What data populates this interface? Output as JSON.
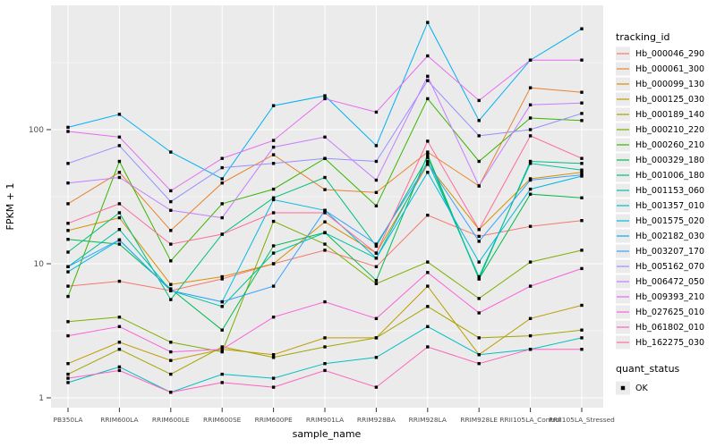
{
  "figure": {
    "x_axis_label": "sample_name",
    "y_axis_label": "FPKM + 1",
    "y_tick_labels": [
      "100",
      "10",
      "1"
    ],
    "legend": {
      "tracking_title": "tracking_id",
      "quant_title": "quant_status",
      "quant_ok_label": "OK"
    },
    "colors": {
      "panel_bg": "#EBEBEB",
      "grid": "#FFFFFF",
      "tick_text": "#4D4D4D",
      "axis_title_text": "#000000",
      "point": "#000000",
      "legend_key_bg": "#EBEBEB"
    }
  },
  "chart_data": {
    "type": "line",
    "title": "",
    "xlabel": "sample_name",
    "ylabel": "FPKM + 1",
    "yscale": "log10",
    "ylim": [
      1,
      820
    ],
    "y_major_ticks": [
      1,
      10,
      100
    ],
    "y_minor_ticks": [
      3.162,
      31.62,
      316.2
    ],
    "grid": true,
    "legend_position": "right",
    "point_shape": "filled-black-square",
    "categories": [
      "PB350LA",
      "RRIM600LA",
      "RRIM600LE",
      "RRIM600SE",
      "RRIM600PE",
      "RRIM901LA",
      "RRIM928BA",
      "RRIM928LA",
      "RRIM928LE",
      "RRII105LA_Control",
      "RRII105LA_Stressed"
    ],
    "series": [
      {
        "name": "Hb_000046_290",
        "color": "#F8766D",
        "values": [
          6.8,
          7.4,
          6.3,
          7.7,
          10,
          12.6,
          9.5,
          23,
          16,
          19,
          21
        ]
      },
      {
        "name": "Hb_000061_300",
        "color": "#EA8331",
        "values": [
          28,
          48,
          17.7,
          40,
          65,
          35.7,
          34,
          68,
          38,
          205,
          190
        ]
      },
      {
        "name": "Hb_000099_130",
        "color": "#D89000",
        "values": [
          17.7,
          22,
          7,
          8,
          10,
          20.5,
          12,
          55,
          18,
          43,
          48
        ]
      },
      {
        "name": "Hb_000125_030",
        "color": "#C09B00",
        "values": [
          1.8,
          2.6,
          1.9,
          2.3,
          2.1,
          2.8,
          2.8,
          6.8,
          2.1,
          3.9,
          4.9
        ]
      },
      {
        "name": "Hb_000189_140",
        "color": "#A3A500",
        "values": [
          1.5,
          2.3,
          1.5,
          2.4,
          2.0,
          2.4,
          2.8,
          4.8,
          2.8,
          2.9,
          3.2
        ]
      },
      {
        "name": "Hb_000210_220",
        "color": "#7CAE00",
        "values": [
          3.7,
          4.0,
          2.6,
          2.2,
          20.7,
          14,
          7.1,
          10.3,
          5.5,
          10.3,
          12.6
        ]
      },
      {
        "name": "Hb_000260_210",
        "color": "#39B600",
        "values": [
          5.7,
          58,
          10.5,
          28,
          36,
          61,
          27,
          170,
          58,
          122,
          117
        ]
      },
      {
        "name": "Hb_000329_180",
        "color": "#00BB4E",
        "values": [
          15.2,
          14,
          6.5,
          3.2,
          13.6,
          17.1,
          7.5,
          65,
          7.7,
          33,
          31
        ]
      },
      {
        "name": "Hb_001006_180",
        "color": "#00BF7D",
        "values": [
          12.2,
          24,
          5.4,
          16.6,
          31,
          44,
          13.5,
          62,
          7.7,
          58,
          56
        ]
      },
      {
        "name": "Hb_001153_060",
        "color": "#00C1A3",
        "values": [
          9.5,
          18,
          6.3,
          4.8,
          12,
          17,
          11,
          58,
          8,
          56,
          50
        ]
      },
      {
        "name": "Hb_001357_010",
        "color": "#00BFC4",
        "values": [
          1.3,
          1.7,
          1.1,
          1.5,
          1.4,
          1.8,
          2.0,
          3.4,
          2.1,
          2.3,
          2.8
        ]
      },
      {
        "name": "Hb_001575_020",
        "color": "#00BAE0",
        "values": [
          8.7,
          15,
          6.3,
          5.2,
          30,
          25,
          11,
          48,
          10.3,
          36,
          45
        ]
      },
      {
        "name": "Hb_002182_030",
        "color": "#00B0F6",
        "values": [
          104,
          130,
          68,
          43,
          151,
          179,
          76,
          630,
          117,
          330,
          565
        ]
      },
      {
        "name": "Hb_003207_170",
        "color": "#35A2FF",
        "values": [
          9.5,
          15.1,
          6.3,
          5.2,
          6.8,
          25,
          14,
          56,
          14.7,
          42,
          46
        ]
      },
      {
        "name": "Hb_005162_070",
        "color": "#9590FF",
        "values": [
          56,
          76,
          29,
          52,
          56,
          61,
          58,
          232,
          90,
          100,
          132
        ]
      },
      {
        "name": "Hb_006472_050",
        "color": "#C77CFF",
        "values": [
          40,
          44,
          25,
          22,
          74,
          88,
          42,
          250,
          38,
          153,
          158
        ]
      },
      {
        "name": "Hb_009393_210",
        "color": "#E76BF3",
        "values": [
          97,
          88,
          35,
          61,
          83,
          170,
          135,
          355,
          165,
          330,
          330
        ]
      },
      {
        "name": "Hb_027625_010",
        "color": "#FA62DB",
        "values": [
          2.9,
          3.4,
          2.2,
          2.3,
          4.0,
          5.2,
          3.9,
          8.6,
          4.3,
          6.8,
          9.2
        ]
      },
      {
        "name": "Hb_061802_010",
        "color": "#FF62BC",
        "values": [
          1.4,
          1.6,
          1.1,
          1.3,
          1.2,
          1.6,
          1.2,
          2.4,
          1.8,
          2.3,
          2.3
        ]
      },
      {
        "name": "Hb_162275_030",
        "color": "#FF6A98",
        "values": [
          20,
          28,
          14,
          16.6,
          24,
          24,
          12,
          82,
          18,
          90,
          61
        ]
      }
    ]
  }
}
